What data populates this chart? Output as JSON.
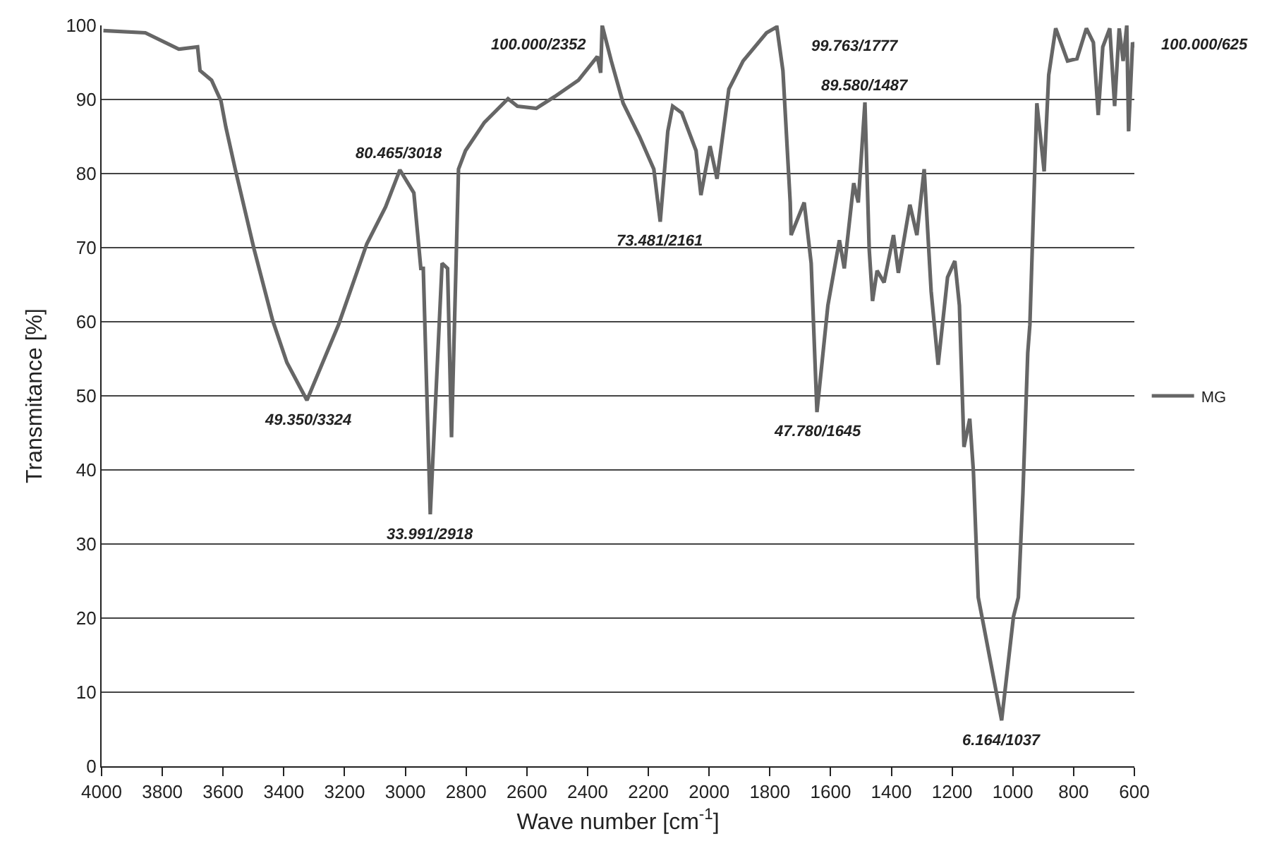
{
  "chart_data": {
    "type": "line",
    "xlabel": "Wave number [cm$^{-1}$]",
    "ylabel": "Transmitance [%]",
    "xlim": [
      4000,
      600
    ],
    "xticks": [
      4000,
      3800,
      3600,
      3400,
      3200,
      3000,
      2800,
      2600,
      2400,
      2200,
      2000,
      1800,
      1600,
      1400,
      1200,
      1000,
      800,
      600
    ],
    "ylim": [
      0,
      100
    ],
    "yticks": [
      0,
      10,
      20,
      30,
      40,
      50,
      60,
      70,
      80,
      90,
      100
    ],
    "grid": "y",
    "legend": "right",
    "marker": "none",
    "line_style": "solid",
    "series": [
      {
        "name": "MG",
        "color": "#666666",
        "x": [
          3994,
          3856,
          3746,
          3684,
          3676,
          3638,
          3607,
          3591,
          3560,
          3498,
          3437,
          3390,
          3324,
          3220,
          3127,
          3065,
          3018,
          2972,
          2949,
          2941,
          2918,
          2879,
          2861,
          2848,
          2825,
          2802,
          2740,
          2662,
          2631,
          2569,
          2508,
          2430,
          2368,
          2357,
          2352,
          2322,
          2283,
          2229,
          2182,
          2161,
          2136,
          2120,
          2090,
          2043,
          2027,
          1997,
          1974,
          1935,
          1888,
          1811,
          1777,
          1757,
          1733,
          1730,
          1687,
          1664,
          1645,
          1609,
          1571,
          1555,
          1524,
          1509,
          1487,
          1473,
          1462,
          1447,
          1424,
          1393,
          1377,
          1339,
          1316,
          1292,
          1269,
          1246,
          1215,
          1191,
          1176,
          1161,
          1142,
          1130,
          1114,
          1099,
          1037,
          998,
          982,
          967,
          951,
          944,
          921,
          897,
          882,
          859,
          820,
          789,
          758,
          735,
          719,
          704,
          681,
          665,
          650,
          637,
          625,
          619,
          606,
          600
        ],
        "values": [
          99.3,
          99.0,
          96.8,
          97.1,
          93.9,
          92.6,
          89.8,
          86.3,
          80.6,
          69.8,
          60.2,
          54.5,
          49.4,
          59.6,
          70.5,
          75.5,
          80.5,
          77.4,
          67.2,
          67.2,
          34.0,
          67.9,
          67.2,
          44.4,
          80.6,
          83.1,
          86.9,
          90.1,
          89.1,
          88.8,
          90.4,
          92.6,
          95.8,
          93.6,
          100.0,
          95.2,
          89.5,
          85.0,
          80.6,
          73.5,
          85.7,
          89.1,
          88.2,
          83.1,
          77.1,
          83.7,
          79.3,
          91.4,
          95.2,
          99.0,
          99.8,
          93.9,
          76.1,
          71.7,
          76.1,
          67.9,
          47.8,
          62.2,
          71.0,
          67.2,
          78.7,
          76.1,
          89.6,
          69.8,
          62.8,
          66.9,
          65.3,
          71.7,
          66.6,
          75.8,
          71.7,
          80.6,
          64.1,
          54.2,
          66.0,
          68.2,
          62.2,
          43.1,
          46.9,
          39.9,
          22.8,
          19.6,
          6.2,
          20.2,
          22.8,
          36.8,
          55.8,
          59.6,
          89.5,
          80.3,
          93.3,
          99.6,
          95.2,
          95.5,
          99.6,
          97.7,
          87.9,
          97.1,
          99.6,
          89.1,
          99.6,
          95.2,
          100.0,
          85.7,
          97.7,
          97.0
        ]
      }
    ],
    "annotations": [
      {
        "text": "49.350/3324",
        "x": 3324,
        "y": 49.35
      },
      {
        "text": "80.465/3018",
        "x": 3018,
        "y": 80.465
      },
      {
        "text": "33.991/2918",
        "x": 2918,
        "y": 33.991
      },
      {
        "text": "100.000/2352",
        "x": 2352,
        "y": 100.0
      },
      {
        "text": "73.481/2161",
        "x": 2161,
        "y": 73.481
      },
      {
        "text": "99.763/1777",
        "x": 1777,
        "y": 99.763
      },
      {
        "text": "47.780/1645",
        "x": 1645,
        "y": 47.78
      },
      {
        "text": "89.580/1487",
        "x": 1487,
        "y": 89.58
      },
      {
        "text": "6.164/1037",
        "x": 1037,
        "y": 6.164
      },
      {
        "text": "100.000/625",
        "x": 625,
        "y": 100.0
      }
    ]
  }
}
